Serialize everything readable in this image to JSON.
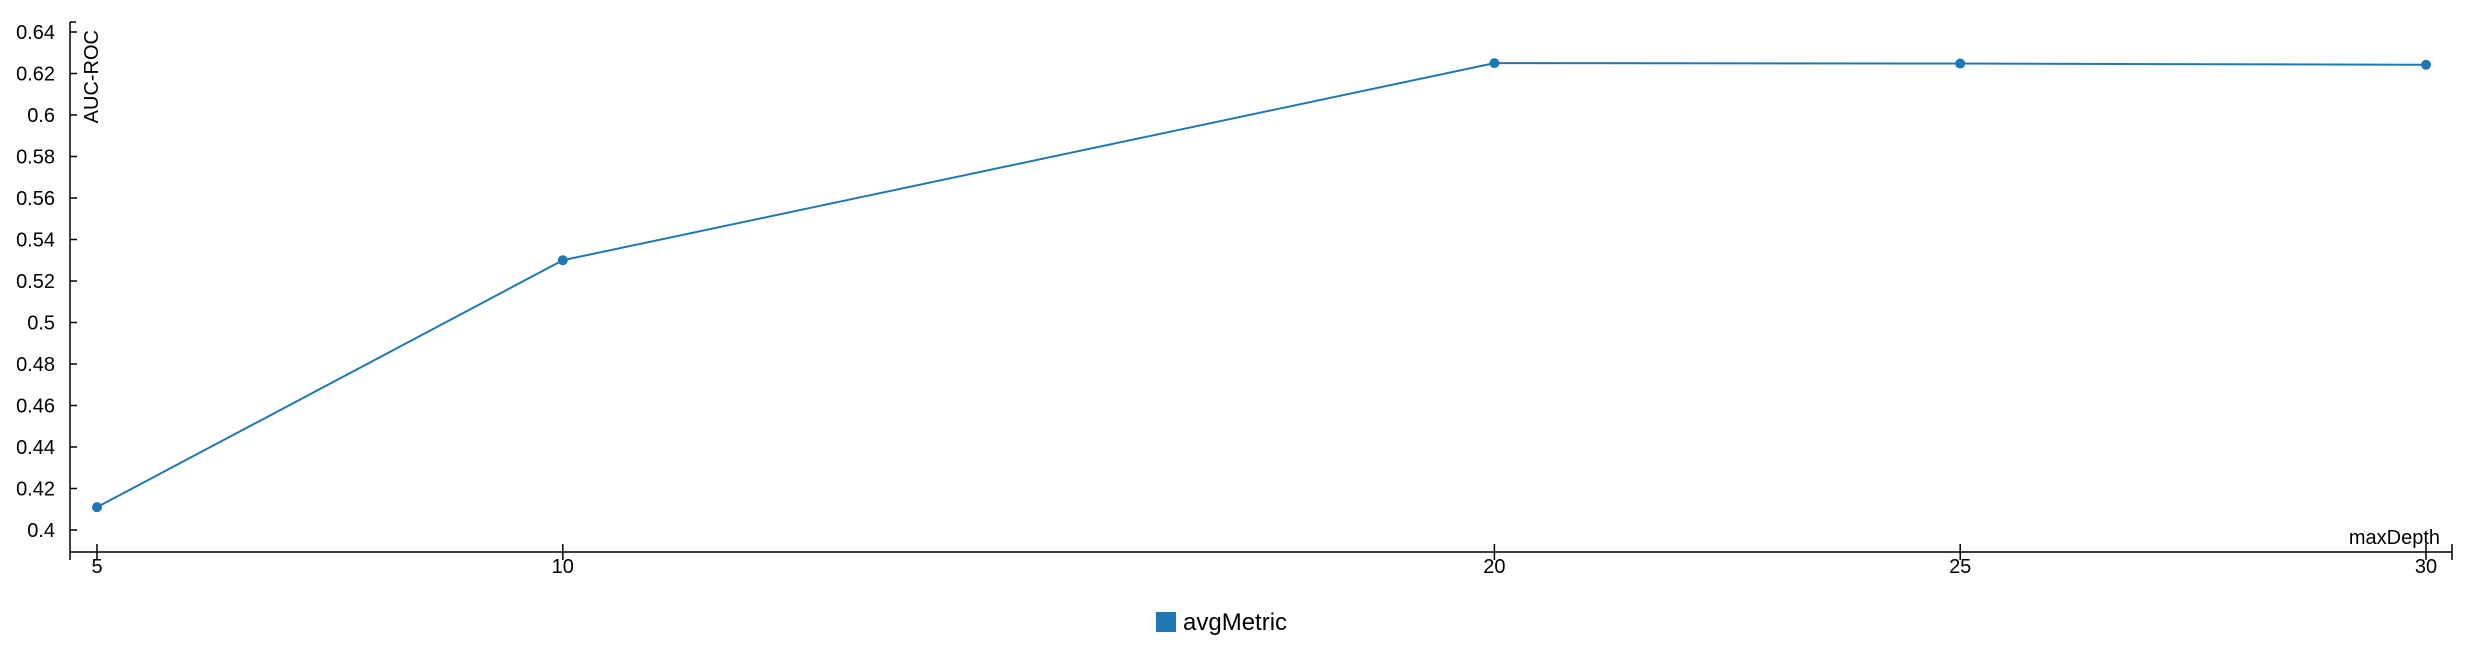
{
  "chart_data": {
    "type": "line",
    "xlabel": "maxDepth",
    "ylabel": "AUC-ROC",
    "x": [
      5,
      10,
      20,
      25,
      30
    ],
    "x_ticks": [
      5,
      10,
      20,
      25,
      30
    ],
    "y_ticks": [
      0.4,
      0.42,
      0.44,
      0.46,
      0.48,
      0.5,
      0.52,
      0.54,
      0.56,
      0.58,
      0.6,
      0.62,
      0.64
    ],
    "ylim": [
      0.39,
      0.65
    ],
    "xlim": [
      5,
      30
    ],
    "grid": false,
    "legend_position": "bottom-center",
    "series": [
      {
        "name": "avgMetric",
        "color": "#1f77b4",
        "values": [
          0.411,
          0.53,
          0.625,
          0.6248,
          0.6242
        ]
      }
    ]
  }
}
